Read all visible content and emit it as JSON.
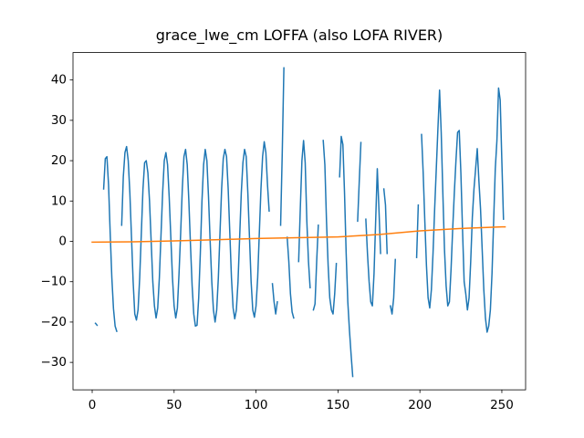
{
  "chart_data": {
    "type": "line",
    "title": "grace_lwe_cm LOFFA (also LOFA RIVER)",
    "xlim": [
      -11.7,
      264.5
    ],
    "xticks": [
      0,
      50,
      100,
      150,
      200,
      250
    ],
    "ylim": [
      -36.8,
      46.8
    ],
    "yticks": [
      {
        "value": -30,
        "label": "−30"
      },
      {
        "value": -20,
        "label": "−20"
      },
      {
        "value": -10,
        "label": "−10"
      },
      0,
      10,
      20,
      30,
      40
    ],
    "grid": false,
    "series": [
      {
        "color": "#1f77b4",
        "x": [
          0,
          1,
          2,
          3,
          4,
          5,
          6,
          7,
          8,
          9,
          10,
          11,
          12,
          13,
          14,
          15,
          16,
          17,
          18,
          19,
          20,
          21,
          22,
          23,
          24,
          25,
          26,
          27,
          28,
          29,
          30,
          31,
          32,
          33,
          34,
          35,
          36,
          37,
          38,
          39,
          40,
          41,
          42,
          43,
          44,
          45,
          46,
          47,
          48,
          49,
          50,
          51,
          52,
          53,
          54,
          55,
          56,
          57,
          58,
          59,
          60,
          61,
          62,
          63,
          64,
          65,
          66,
          67,
          68,
          69,
          70,
          71,
          72,
          73,
          74,
          75,
          76,
          77,
          78,
          79,
          80,
          81,
          82,
          83,
          84,
          85,
          86,
          87,
          88,
          89,
          90,
          91,
          92,
          93,
          94,
          95,
          96,
          97,
          98,
          99,
          100,
          101,
          102,
          103,
          104,
          105,
          106,
          107,
          108,
          109,
          110,
          111,
          112,
          113,
          114,
          115,
          116,
          117,
          118,
          119,
          120,
          121,
          122,
          123,
          124,
          125,
          126,
          127,
          128,
          129,
          130,
          131,
          132,
          133,
          134,
          135,
          136,
          137,
          138,
          139,
          140,
          141,
          142,
          143,
          144,
          145,
          146,
          147,
          148,
          149,
          150,
          151,
          152,
          153,
          154,
          155,
          156,
          157,
          158,
          159,
          160,
          161,
          162,
          163,
          164,
          165,
          166,
          167,
          168,
          169,
          170,
          171,
          172,
          173,
          174,
          175,
          176,
          177,
          178,
          179,
          180,
          181,
          182,
          183,
          184,
          185,
          186,
          187,
          188,
          189,
          190,
          191,
          192,
          193,
          194,
          195,
          196,
          197,
          198,
          199,
          200,
          201,
          202,
          203,
          204,
          205,
          206,
          207,
          208,
          209,
          210,
          211,
          212,
          213,
          214,
          215,
          216,
          217,
          218,
          219,
          220,
          221,
          222,
          223,
          224,
          225,
          226,
          227,
          228,
          229,
          230,
          231,
          232,
          233,
          234,
          235,
          236,
          237,
          238,
          239,
          240,
          241,
          242,
          243,
          244,
          245,
          246,
          247,
          248,
          249,
          250,
          251
        ],
        "values": [
          null,
          null,
          -20.3,
          -20.8,
          null,
          null,
          null,
          13,
          20.5,
          21,
          14,
          2,
          -9,
          -16.7,
          -21,
          -22.3,
          null,
          null,
          4,
          16,
          22,
          23.5,
          20,
          12,
          1,
          -10,
          -18,
          -19.5,
          -17,
          -9,
          2,
          13,
          19.5,
          20,
          17,
          10,
          0,
          -10,
          -16,
          -19,
          -16.5,
          -9,
          1.5,
          12,
          20,
          22,
          19,
          11,
          1,
          -9,
          -16,
          -19,
          -16.5,
          -8,
          2,
          13,
          21,
          22.8,
          19,
          10,
          -1,
          -11,
          -18,
          -21,
          -20.8,
          -14,
          -3,
          10,
          19,
          22.8,
          20,
          11,
          0,
          -10,
          -17,
          -20,
          -17,
          -9,
          2,
          13,
          20.5,
          22.8,
          21,
          13,
          2,
          -9,
          -16.5,
          -19.2,
          -17,
          -10,
          1,
          12,
          19.5,
          22.8,
          21,
          12,
          1,
          -10,
          -17,
          -18.8,
          -16,
          -9,
          2,
          13,
          21,
          24.7,
          22,
          14,
          7.5,
          null,
          -10.5,
          -15,
          -18,
          -15,
          null,
          4,
          22,
          43,
          null,
          1,
          -5,
          -13,
          -17.5,
          -19,
          null,
          null,
          -5,
          8,
          20,
          25,
          19.5,
          5,
          -5,
          -11.5,
          null,
          -17,
          -15.5,
          -5,
          4,
          null,
          null,
          25,
          19,
          5,
          -6,
          -14,
          -17,
          -18,
          -13,
          -5.5,
          null,
          16,
          26,
          24,
          12,
          -3,
          -15,
          -22,
          -28,
          -33.5,
          null,
          null,
          5,
          15,
          24.5,
          null,
          null,
          5.5,
          -3,
          -10,
          -15,
          -16,
          -8,
          5,
          18,
          8,
          -3,
          null,
          13,
          9,
          -3,
          null,
          -16,
          -18,
          -14,
          -4.5,
          null,
          null,
          null,
          null,
          null,
          null,
          null,
          null,
          null,
          null,
          null,
          null,
          -4,
          9,
          null,
          26.5,
          17,
          5,
          -6,
          -14,
          -16.5,
          -12,
          -3,
          8,
          18,
          28,
          37.5,
          27,
          12,
          -2,
          -11,
          -16,
          -15,
          -7,
          3,
          12,
          20,
          27,
          27.5,
          17,
          3,
          -10,
          -13,
          -17,
          -14,
          -5,
          6,
          13,
          18,
          23,
          15,
          8,
          -2,
          -12,
          -19,
          -22.5,
          -21,
          -17,
          -8,
          5,
          18,
          25,
          38,
          35,
          20,
          5.5
        ]
      },
      {
        "color": "#ff7f0e",
        "x": [
          0,
          25,
          50,
          75,
          100,
          125,
          150,
          175,
          200,
          225,
          250,
          252
        ],
        "values": [
          -0.2,
          -0.1,
          0.1,
          0.4,
          0.7,
          0.9,
          1.1,
          1.7,
          2.6,
          3.2,
          3.6,
          3.6
        ]
      }
    ]
  }
}
